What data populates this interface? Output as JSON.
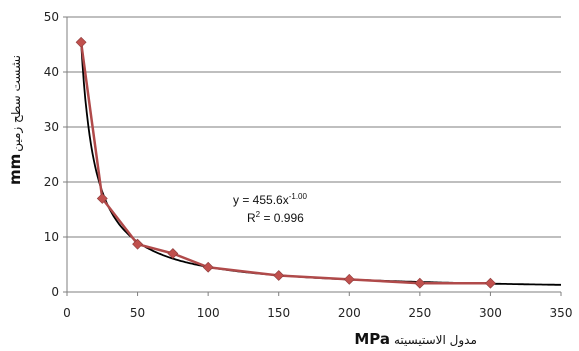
{
  "chart_data": {
    "type": "scatter",
    "title": "",
    "xlabel": {
      "unit": "MPa",
      "text": "مدول الاستیسیته"
    },
    "ylabel": {
      "unit": "mm",
      "text": "نشست سطح زمین"
    },
    "xlim": [
      0,
      350
    ],
    "ylim": [
      0,
      50
    ],
    "xticks": [
      0,
      50,
      100,
      150,
      200,
      250,
      300,
      350
    ],
    "yticks": [
      0,
      10,
      20,
      30,
      40,
      50
    ],
    "grid": {
      "horizontal": true,
      "vertical": false
    },
    "legend": "none",
    "series": [
      {
        "x": [
          10,
          25,
          50,
          75,
          100,
          150,
          200,
          250,
          300
        ],
        "y": [
          45.4,
          17.0,
          8.7,
          7.0,
          4.5,
          3.0,
          2.3,
          1.6,
          1.6
        ],
        "marker": "diamond",
        "color": "#c0504d",
        "line_color": "#b04a4a"
      }
    ],
    "trendline": {
      "type": "power",
      "coefficient": 455.6,
      "exponent": -1.0,
      "color": "#000000",
      "equation": {
        "base": "y = 455.6x",
        "exponent": "-1.00"
      },
      "r2": {
        "prefix": "R",
        "sup": "2",
        "suffix": " = 0.996"
      }
    }
  }
}
